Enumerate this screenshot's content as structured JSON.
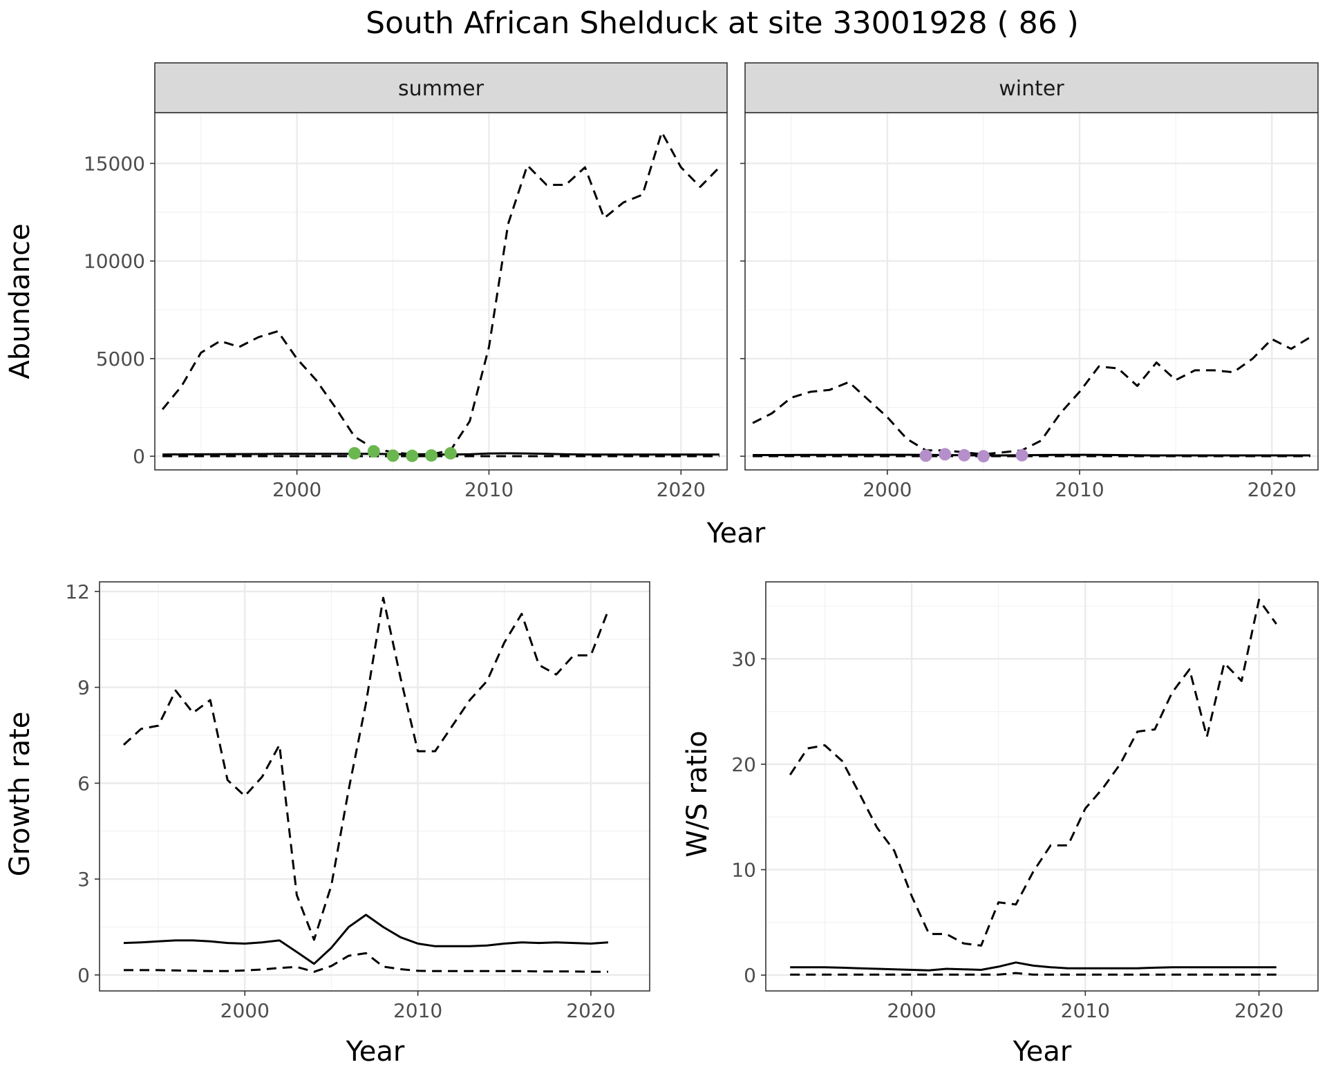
{
  "title": "South African Shelduck at site 33001928 ( 86 )",
  "chart_data": [
    {
      "type": "line",
      "panel": "abundance",
      "facets": [
        "summer",
        "winter"
      ],
      "xlabel": "Year",
      "ylabel": "Abundance",
      "xlim": [
        1992.6,
        2022.4
      ],
      "ylim": [
        -700,
        17600
      ],
      "xticks": [
        2000,
        2010,
        2020
      ],
      "yticks": [
        0,
        5000,
        10000,
        15000
      ],
      "xtick_labels": [
        "2000",
        "2010",
        "2020"
      ],
      "ytick_labels": [
        "0",
        "5000",
        "10000",
        "15000"
      ],
      "grid": true,
      "x": [
        1993,
        1994,
        1995,
        1996,
        1997,
        1998,
        1999,
        2000,
        2001,
        2002,
        2003,
        2004,
        2005,
        2006,
        2007,
        2008,
        2009,
        2010,
        2011,
        2012,
        2013,
        2014,
        2015,
        2016,
        2017,
        2018,
        2019,
        2020,
        2021,
        2022
      ],
      "summer": {
        "strip": "summer",
        "point_color": "#6ab74f",
        "series": [
          {
            "style": "solid",
            "values": [
              90,
              95,
              100,
              105,
              110,
              115,
              120,
              125,
              125,
              125,
              125,
              120,
              110,
              95,
              85,
              85,
              100,
              140,
              150,
              140,
              120,
              100,
              90,
              90,
              90,
              90,
              90,
              90,
              85,
              85
            ]
          },
          {
            "style": "dashed",
            "values": [
              2400,
              3600,
              5300,
              5900,
              5600,
              6100,
              6400,
              5000,
              3900,
              2500,
              1000,
              400,
              200,
              100,
              100,
              300,
              1800,
              5600,
              11900,
              14900,
              13900,
              13900,
              14800,
              12200,
              13000,
              13400,
              16600,
              14800,
              13800,
              14800
            ]
          },
          {
            "style": "dashed",
            "values": [
              5,
              5,
              5,
              5,
              5,
              5,
              5,
              5,
              5,
              5,
              5,
              5,
              5,
              5,
              5,
              5,
              5,
              5,
              5,
              5,
              5,
              5,
              5,
              5,
              5,
              5,
              5,
              5,
              5,
              5
            ]
          }
        ],
        "points": {
          "x": [
            2003,
            2004,
            2005,
            2006,
            2007,
            2008
          ],
          "y": [
            150,
            250,
            30,
            20,
            40,
            150
          ]
        }
      },
      "winter": {
        "strip": "winter",
        "point_color": "#b48fca",
        "series": [
          {
            "style": "solid",
            "values": [
              60,
              60,
              65,
              70,
              70,
              75,
              75,
              75,
              75,
              70,
              60,
              50,
              45,
              45,
              50,
              60,
              70,
              75,
              70,
              60,
              50,
              45,
              45,
              45,
              45,
              45,
              45,
              45,
              45,
              45
            ]
          },
          {
            "style": "dashed",
            "values": [
              1700,
              2200,
              3000,
              3300,
              3400,
              3800,
              2900,
              2000,
              900,
              300,
              300,
              200,
              100,
              200,
              300,
              800,
              2200,
              3300,
              4600,
              4500,
              3600,
              4800,
              3900,
              4400,
              4400,
              4300,
              5000,
              6000,
              5500,
              6100
            ]
          },
          {
            "style": "dashed",
            "values": [
              5,
              5,
              5,
              5,
              5,
              5,
              5,
              5,
              5,
              5,
              5,
              5,
              5,
              5,
              5,
              5,
              5,
              5,
              5,
              5,
              5,
              5,
              5,
              5,
              5,
              5,
              5,
              5,
              5,
              5
            ]
          }
        ],
        "points": {
          "x": [
            2002,
            2003,
            2004,
            2005,
            2007
          ],
          "y": [
            30,
            100,
            50,
            0,
            50
          ]
        }
      }
    },
    {
      "type": "line",
      "panel": "growth",
      "xlabel": "Year",
      "ylabel": "Growth rate",
      "xlim": [
        1991.6,
        2023.4
      ],
      "ylim": [
        -0.5,
        12.3
      ],
      "xticks": [
        2000,
        2010,
        2020
      ],
      "yticks": [
        0,
        3,
        6,
        9,
        12
      ],
      "xtick_labels": [
        "2000",
        "2010",
        "2020"
      ],
      "ytick_labels": [
        "0",
        "3",
        "6",
        "9",
        "12"
      ],
      "grid": true,
      "x": [
        1993,
        1994,
        1995,
        1996,
        1997,
        1998,
        1999,
        2000,
        2001,
        2002,
        2003,
        2004,
        2005,
        2006,
        2007,
        2008,
        2009,
        2010,
        2011,
        2012,
        2013,
        2014,
        2015,
        2016,
        2017,
        2018,
        2019,
        2020,
        2021
      ],
      "series": [
        {
          "style": "solid",
          "values": [
            1.0,
            1.02,
            1.05,
            1.08,
            1.08,
            1.05,
            1.0,
            0.98,
            1.02,
            1.08,
            0.72,
            0.35,
            0.85,
            1.5,
            1.88,
            1.5,
            1.18,
            0.98,
            0.9,
            0.9,
            0.9,
            0.92,
            0.98,
            1.02,
            1.0,
            1.02,
            1.0,
            0.98,
            1.02
          ]
        },
        {
          "style": "dashed",
          "values": [
            7.2,
            7.7,
            7.8,
            8.9,
            8.2,
            8.6,
            6.1,
            5.6,
            6.2,
            7.2,
            2.5,
            1.1,
            2.8,
            5.8,
            8.5,
            11.8,
            9.3,
            7.0,
            7.0,
            7.8,
            8.6,
            9.2,
            10.4,
            11.3,
            9.7,
            9.4,
            10.0,
            10.0,
            11.4
          ]
        },
        {
          "style": "dashed",
          "values": [
            0.15,
            0.15,
            0.15,
            0.14,
            0.13,
            0.12,
            0.12,
            0.14,
            0.17,
            0.22,
            0.25,
            0.1,
            0.28,
            0.6,
            0.68,
            0.26,
            0.18,
            0.13,
            0.12,
            0.12,
            0.12,
            0.12,
            0.12,
            0.12,
            0.11,
            0.11,
            0.11,
            0.1,
            0.1
          ]
        }
      ]
    },
    {
      "type": "line",
      "panel": "ratio",
      "xlabel": "Year",
      "ylabel": "W/S ratio",
      "xlim": [
        1991.6,
        2023.4
      ],
      "ylim": [
        -1.5,
        37.3
      ],
      "xticks": [
        2000,
        2010,
        2020
      ],
      "yticks": [
        0,
        10,
        20,
        30
      ],
      "xtick_labels": [
        "2000",
        "2010",
        "2020"
      ],
      "ytick_labels": [
        "0",
        "10",
        "20",
        "30"
      ],
      "grid": true,
      "x": [
        1993,
        1994,
        1995,
        1996,
        1997,
        1998,
        1999,
        2000,
        2001,
        2002,
        2003,
        2004,
        2005,
        2006,
        2007,
        2008,
        2009,
        2010,
        2011,
        2012,
        2013,
        2014,
        2015,
        2016,
        2017,
        2018,
        2019,
        2020,
        2021
      ],
      "series": [
        {
          "style": "solid",
          "values": [
            0.75,
            0.75,
            0.75,
            0.7,
            0.65,
            0.6,
            0.55,
            0.5,
            0.45,
            0.6,
            0.55,
            0.5,
            0.8,
            1.2,
            0.9,
            0.75,
            0.65,
            0.65,
            0.65,
            0.65,
            0.65,
            0.7,
            0.75,
            0.75,
            0.75,
            0.75,
            0.75,
            0.75,
            0.75
          ]
        },
        {
          "style": "dashed",
          "values": [
            19.0,
            21.5,
            21.8,
            20.3,
            17.2,
            14.0,
            11.8,
            7.5,
            3.9,
            3.9,
            3.0,
            2.8,
            6.9,
            6.7,
            9.8,
            12.3,
            12.3,
            15.8,
            17.7,
            20.0,
            23.1,
            23.3,
            26.8,
            29.0,
            22.6,
            29.6,
            27.9,
            35.6,
            33.3
          ]
        },
        {
          "style": "dashed",
          "values": [
            0.05,
            0.05,
            0.05,
            0.05,
            0.05,
            0.05,
            0.05,
            0.05,
            0.05,
            0.05,
            0.05,
            0.05,
            0.05,
            0.2,
            0.05,
            0.05,
            0.05,
            0.05,
            0.05,
            0.05,
            0.05,
            0.05,
            0.05,
            0.05,
            0.05,
            0.05,
            0.05,
            0.05,
            0.05
          ]
        }
      ]
    }
  ]
}
